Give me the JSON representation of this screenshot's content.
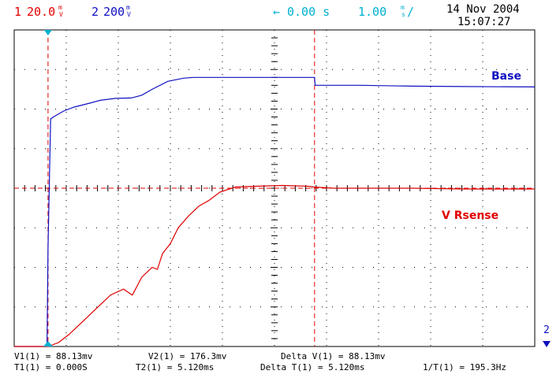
{
  "header": {
    "ch1_number": "1",
    "ch1_scale": "20.0",
    "ch1_unit_top": "m",
    "ch1_unit_bottom": "V",
    "ch2_number": "2",
    "ch2_scale": "200",
    "ch2_unit_top": "m",
    "ch2_unit_bottom": "V",
    "trigger_delay": "0.00 s",
    "timebase": "1.00",
    "timebase_unit_top": "m",
    "timebase_unit_bottom": "s",
    "trigger_slope": "/",
    "date": "14 Nov 2004",
    "time": "15:07:27"
  },
  "measurements": {
    "row1": {
      "v1": "V1(1) = 88.13mv",
      "v2": "V2(1) = 176.3mv",
      "delta_v": "Delta V(1) = 88.13mv"
    },
    "row2": {
      "t1": "T1(1) = 0.000S",
      "t2": "T2(1) = 5.120ms",
      "delta_t": "Delta T(1) = 5.120ms",
      "inv_t": "1/T(1) = 195.3Hz"
    }
  },
  "ch2_marker": "2",
  "colors": {
    "ch1": "#e00000",
    "ch2": "#1010c0",
    "cursor_t": "#00b0d0",
    "grid": "#000000"
  },
  "chart_data": {
    "type": "line",
    "x_unit": "ms",
    "xlim": [
      -0.65,
      9.35
    ],
    "y_unit": "divisions",
    "ylim": [
      -4,
      4
    ],
    "grid": true,
    "series": [
      {
        "name": "Base",
        "color": "#1010c0",
        "x": [
          -0.65,
          -0.02,
          0.0,
          0.05,
          0.1,
          0.3,
          0.5,
          0.8,
          1.0,
          1.3,
          1.6,
          1.8,
          2.0,
          2.3,
          2.6,
          2.8,
          3.0,
          3.5,
          4.0,
          4.5,
          5.0,
          5.12,
          5.13,
          5.5,
          6.0,
          7.0,
          8.0,
          9.35
        ],
        "y": [
          -4.0,
          -4.0,
          -1.5,
          1.75,
          1.8,
          1.95,
          2.05,
          2.15,
          2.22,
          2.27,
          2.28,
          2.35,
          2.5,
          2.7,
          2.78,
          2.8,
          2.8,
          2.8,
          2.8,
          2.8,
          2.8,
          2.8,
          2.6,
          2.6,
          2.6,
          2.58,
          2.57,
          2.56
        ]
      },
      {
        "name": "V Rsense",
        "color": "#e00000",
        "x": [
          -0.65,
          -0.02,
          0.0,
          0.2,
          0.4,
          0.6,
          0.8,
          1.0,
          1.2,
          1.45,
          1.62,
          1.8,
          2.0,
          2.1,
          2.2,
          2.35,
          2.5,
          2.7,
          2.9,
          3.1,
          3.3,
          3.6,
          4.0,
          4.5,
          5.0,
          5.12,
          5.5,
          6.0,
          7.0,
          8.0,
          9.35
        ],
        "y": [
          -4.0,
          -4.0,
          -4.0,
          -3.9,
          -3.7,
          -3.45,
          -3.2,
          -2.95,
          -2.7,
          -2.55,
          -2.7,
          -2.25,
          -2.0,
          -2.05,
          -1.65,
          -1.4,
          -1.0,
          -0.7,
          -0.45,
          -0.3,
          -0.1,
          0.03,
          0.05,
          0.07,
          0.05,
          0.03,
          0.0,
          0.0,
          0.0,
          -0.02,
          -0.02
        ]
      }
    ],
    "annotations": [
      {
        "text": "Base",
        "color": "#1010c0"
      },
      {
        "text": "V Rsense",
        "color": "#e00000"
      }
    ],
    "cursors": {
      "t1_ms": 0.0,
      "t2_ms": 5.12,
      "v_level_div": 0.0
    }
  }
}
